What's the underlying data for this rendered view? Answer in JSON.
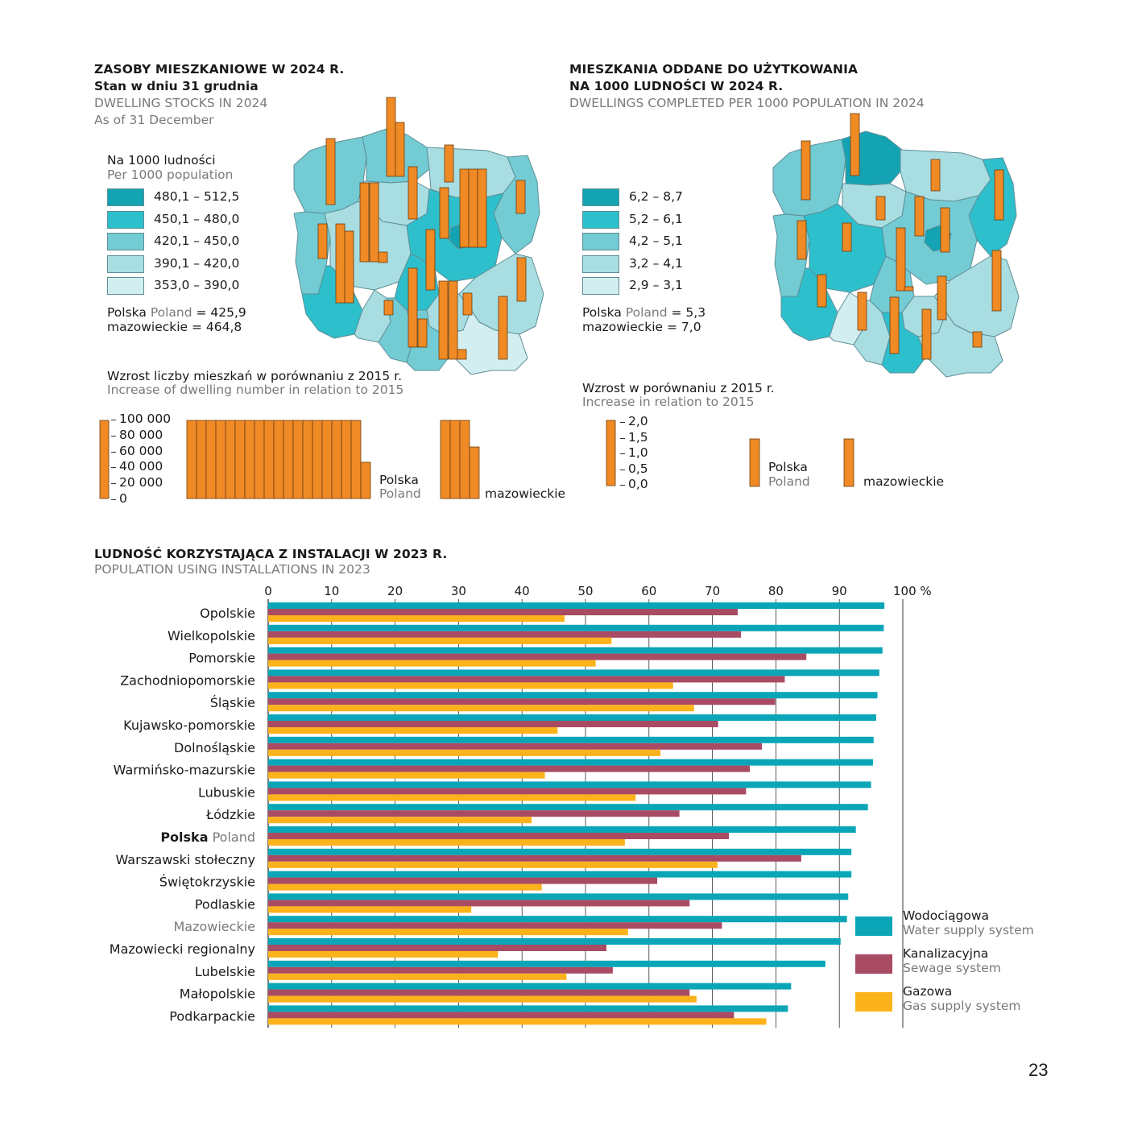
{
  "left_map": {
    "title_pl": "ZASOBY MIESZKANIOWE W 2024 R.",
    "subtitle_pl": "Stan w dniu 31 grudnia",
    "title_en": "DWELLING STOCKS IN 2024",
    "subtitle_en": "As of 31 December",
    "legend_title_pl": "Na 1000 ludności",
    "legend_title_en": "Per 1000 population",
    "legend": [
      {
        "label": "480,1 – 512,5",
        "color": "#14a3b3"
      },
      {
        "label": "450,1 – 480,0",
        "color": "#2ebfcc"
      },
      {
        "label": "420,1 – 450,0",
        "color": "#73cbd4"
      },
      {
        "label": "390,1 – 420,0",
        "color": "#a8dde2"
      },
      {
        "label": "353,0 – 390,0",
        "color": "#d3eef1"
      }
    ],
    "poland_pl": "Polska",
    "poland_en": "Poland",
    "poland_value": "= 425,9",
    "mazowieckie_line": "mazowieckie = 464,8",
    "bars_title_pl": "Wzrost liczby mieszkań w porównaniu z 2015 r.",
    "bars_title_en": "Increase of dwelling number in relation to 2015",
    "scale_ticks": [
      "100 000",
      "80 000",
      "60 000",
      "40 000",
      "20 000",
      "0"
    ],
    "bar_poland_pl": "Polska",
    "bar_poland_en": "Poland",
    "bar_mazowieckie": "mazowieckie"
  },
  "right_map": {
    "title_pl_line1": "MIESZKANIA ODDANE DO UŻYTKOWANIA",
    "title_pl_line2": "NA 1000 LUDNOŚCI W 2024 R.",
    "title_en": "DWELLINGS COMPLETED PER 1000 POPULATION IN 2024",
    "legend": [
      {
        "label": "6,2 – 8,7",
        "color": "#14a3b3"
      },
      {
        "label": "5,2 – 6,1",
        "color": "#2ebfcc"
      },
      {
        "label": "4,2 – 5,1",
        "color": "#73cbd4"
      },
      {
        "label": "3,2 – 4,1",
        "color": "#a8dde2"
      },
      {
        "label": "2,9 – 3,1",
        "color": "#d3eef1"
      }
    ],
    "poland_pl": "Polska",
    "poland_en": "Poland",
    "poland_value": "= 5,3",
    "mazowieckie_line": "mazowieckie = 7,0",
    "bars_title_pl": "Wzrost w porównaniu z 2015 r.",
    "bars_title_en": "Increase in relation to 2015",
    "scale_ticks": [
      "2,0",
      "1,5",
      "1,0",
      "0,5",
      "0,0"
    ],
    "bar_poland_pl": "Polska",
    "bar_poland_en": "Poland",
    "bar_mazowieckie": "mazowieckie"
  },
  "bar_chart": {
    "title_pl": "LUDNOŚĆ KORZYSTAJĄCA Z INSTALACJI W 2023 R.",
    "title_en": "POPULATION USING INSTALLATIONS IN 2023",
    "legend": [
      {
        "pl": "Wodociągowa",
        "en": "Water supply system",
        "color": "#0aa6b7"
      },
      {
        "pl": "Kanalizacyjna",
        "en": "Sewage system",
        "color": "#a84b63"
      },
      {
        "pl": "Gazowa",
        "en": "Gas supply system",
        "color": "#fbb21b"
      }
    ]
  },
  "chart_data": {
    "type": "bar",
    "orientation": "horizontal",
    "xlim": [
      0,
      100
    ],
    "x_ticks": [
      "0",
      "10",
      "20",
      "30",
      "40",
      "50",
      "60",
      "70",
      "80",
      "90",
      "100 %"
    ],
    "grid": true,
    "legend_position": "bottom-right",
    "categories": [
      "Opolskie",
      "Wielkopolskie",
      "Pomorskie",
      "Zachodniopomorskie",
      "Śląskie",
      "Kujawsko-pomorskie",
      "Dolnośląskie",
      "Warmińsko-mazurskie",
      "Lubuskie",
      "Łódzkie",
      "Polska",
      "Warszawski stołeczny",
      "Świętokrzyskie",
      "Podlaskie",
      "Mazowieckie",
      "Mazowiecki regionalny",
      "Lubelskie",
      "Małopolskie",
      "Podkarpackie"
    ],
    "category_suffix": {
      "Polska": "Poland"
    },
    "series": [
      {
        "name": "Wodociągowa",
        "color": "#0aa6b7",
        "values": [
          97.1,
          97.0,
          96.8,
          96.3,
          96.0,
          95.8,
          95.4,
          95.3,
          95.0,
          94.5,
          92.6,
          91.9,
          91.9,
          91.4,
          91.2,
          90.2,
          87.8,
          82.4,
          81.9
        ]
      },
      {
        "name": "Kanalizacyjna",
        "color": "#a84b63",
        "values": [
          74.0,
          74.5,
          84.8,
          81.4,
          79.9,
          70.9,
          77.8,
          75.9,
          75.3,
          64.8,
          72.6,
          84.0,
          61.3,
          66.4,
          71.5,
          53.3,
          54.3,
          66.4,
          73.4
        ]
      },
      {
        "name": "Gazowa",
        "color": "#fbb21b",
        "values": [
          46.7,
          54.1,
          51.6,
          63.8,
          67.1,
          45.6,
          61.8,
          43.6,
          57.9,
          41.5,
          56.2,
          70.8,
          43.1,
          32.0,
          56.7,
          36.2,
          47.0,
          67.5,
          78.5
        ]
      }
    ]
  },
  "page_number": "23"
}
